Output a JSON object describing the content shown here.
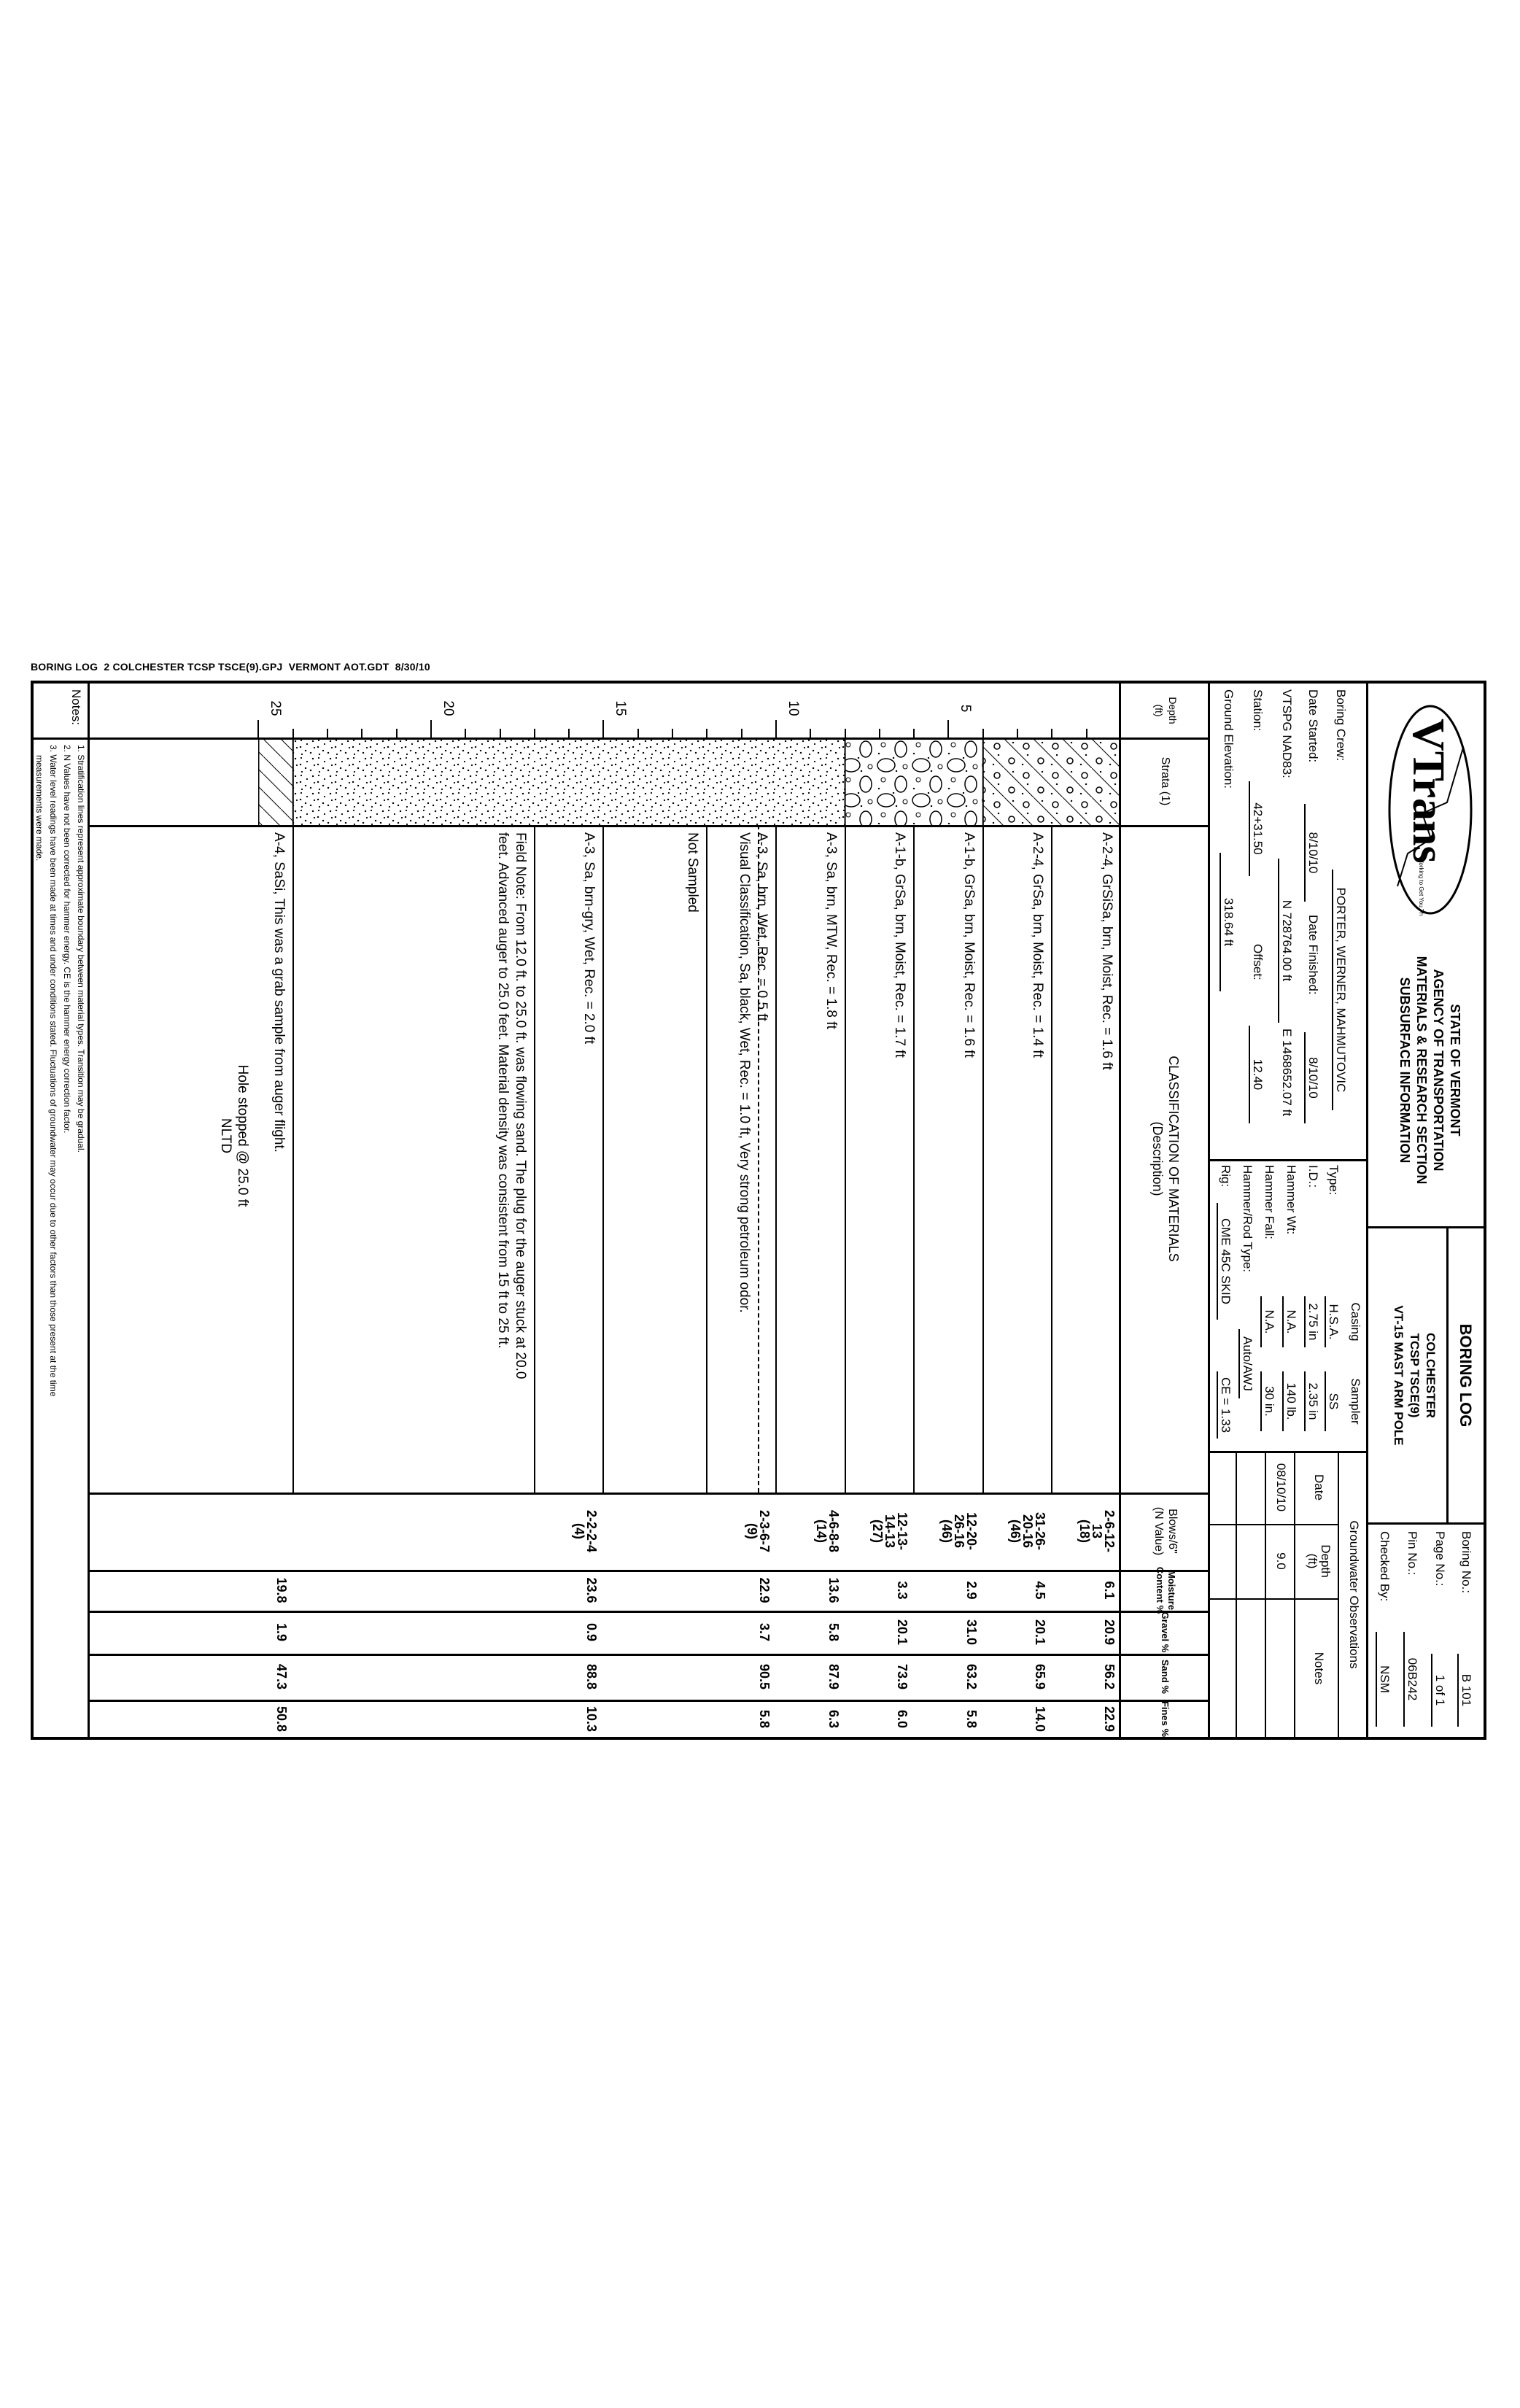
{
  "file_header": "BORING LOG  2 COLCHESTER TCSP TSCE(9).GPJ  VERMONT AOT.GDT  8/30/10",
  "logo": {
    "text": "VTrans",
    "tagline": "Working to Get You There"
  },
  "agency": [
    "STATE OF VERMONT",
    "AGENCY OF TRANSPORTATION",
    "MATERIALS & RESEARCH SECTION",
    "SUBSURFACE INFORMATION"
  ],
  "title": {
    "heading": "BORING LOG",
    "lines": [
      "COLCHESTER",
      "TCSP TSCE(9)",
      "VT-15 MAST ARM POLE"
    ]
  },
  "boring_info": {
    "boring_no_label": "Boring No.:",
    "boring_no": "B 101",
    "page_no_label": "Page No.:",
    "page_no": "1 of 1",
    "pin_no_label": "Pin No.:",
    "pin_no": "06B242",
    "checked_by_label": "Checked By:",
    "checked_by": "NSM"
  },
  "site_info": {
    "boring_crew_label": "Boring Crew:",
    "boring_crew": "PORTER, WERNER, MAHMUTOVIC",
    "date_started_label": "Date Started:",
    "date_started": "8/10/10",
    "date_finished_label": "Date Finished:",
    "date_finished": "8/10/10",
    "vtspg_label": "VTSPG NAD83:",
    "northing": "N 728764.00 ft",
    "easting": "E 1468652.07 ft",
    "station_label": "Station:",
    "station": "42+31.50",
    "offset_label": "Offset:",
    "offset": "12.40",
    "ground_elevation_label": "Ground Elevation:",
    "ground_elevation": "318.64 ft"
  },
  "equipment": {
    "casing_header": "Casing",
    "sampler_header": "Sampler",
    "type_label": "Type:",
    "type_casing": "H.S.A.",
    "type_sampler": "SS",
    "id_label": "I.D.:",
    "id_casing": "2.75 in",
    "id_sampler": "2.35 in",
    "hammer_wt_label": "Hammer Wt:",
    "hammer_wt_casing": "N.A.",
    "hammer_wt_sampler": "140 lb.",
    "hammer_fall_label": "Hammer Fall:",
    "hammer_fall_casing": "N.A.",
    "hammer_fall_sampler": "30 in.",
    "hammer_rod_label": "Hammer/Rod Type:",
    "hammer_rod": "Auto/AWJ",
    "rig_label": "Rig:",
    "rig": "CME 45C SKID",
    "ce": "CE = 1.33"
  },
  "groundwater": {
    "title": "Groundwater Observations",
    "columns": [
      "Date",
      "Depth\n(ft)",
      "Notes"
    ],
    "rows": [
      [
        "08/10/10",
        "9.0",
        ""
      ],
      [
        "",
        "",
        ""
      ],
      [
        "",
        "",
        ""
      ]
    ]
  },
  "columns": {
    "depth": "Depth\n(ft)",
    "strata": "Strata (1)",
    "classification": "CLASSIFICATION OF MATERIALS\n(Description)",
    "blows": "Blows/6\"\n(N Value)",
    "moisture": "Moisture\nContent %",
    "gravel": "Gravel %",
    "sand": "Sand %",
    "fines": "Fines %"
  },
  "depth_axis": {
    "min": 0,
    "max": 25,
    "tick_step": 1,
    "label_step": 5,
    "labels": [
      "5",
      "10",
      "15",
      "20",
      "25"
    ]
  },
  "strata": [
    {
      "from": 0,
      "to": 4,
      "pattern": "silty-gravelly-sand"
    },
    {
      "from": 4,
      "to": 8,
      "pattern": "gravel"
    },
    {
      "from": 8,
      "to": 24,
      "pattern": "sand"
    },
    {
      "from": 24,
      "to": 25,
      "pattern": "silt"
    }
  ],
  "samples": [
    {
      "from": 0,
      "to": 2,
      "description": [
        "A-2-4, GrSiSa, brn, Moist, Rec. = 1.6 ft"
      ],
      "blows": [
        "2-6-12-",
        "13",
        "(18)"
      ],
      "moisture": "6.1",
      "gravel": "20.9",
      "sand": "56.2",
      "fines": "22.9"
    },
    {
      "from": 2,
      "to": 4,
      "description": [
        "A-2-4, GrSa, brn, Moist, Rec. = 1.4 ft"
      ],
      "blows": [
        "31-26-",
        "20-16",
        "(46)"
      ],
      "moisture": "4.5",
      "gravel": "20.1",
      "sand": "65.9",
      "fines": "14.0"
    },
    {
      "from": 4,
      "to": 6,
      "description": [
        "A-1-b, GrSa, brn, Moist, Rec. = 1.6 ft"
      ],
      "blows": [
        "12-20-",
        "26-16",
        "(46)"
      ],
      "moisture": "2.9",
      "gravel": "31.0",
      "sand": "63.2",
      "fines": "5.8"
    },
    {
      "from": 6,
      "to": 8,
      "description": [
        "A-1-b, GrSa, brn, Moist, Rec. = 1.7 ft"
      ],
      "blows": [
        "12-13-",
        "14-13",
        "(27)"
      ],
      "moisture": "3.3",
      "gravel": "20.1",
      "sand": "73.9",
      "fines": "6.0"
    },
    {
      "from": 8,
      "to": 10,
      "description": [
        "A-3, Sa, brn, MTW, Rec. = 1.8 ft"
      ],
      "blows": [
        "4-6-8-8",
        "(14)"
      ],
      "moisture": "13.6",
      "gravel": "5.8",
      "sand": "87.9",
      "fines": "6.3"
    },
    {
      "from": 10,
      "to": 10.5,
      "description": [
        "A-3, Sa, brn, Wet, Rec. = 0.5 ft"
      ],
      "blows": [
        "2-3-6-7",
        "(9)"
      ],
      "moisture": "22.9",
      "gravel": "3.7",
      "sand": "90.5",
      "fines": "5.8",
      "boundary": "dashed"
    },
    {
      "from": 10.5,
      "to": 12,
      "description": [
        "Visual Classification, Sa, black, Wet, Rec. = 1.0 ft, Very strong petroleum odor."
      ]
    },
    {
      "from": 12,
      "to": 15,
      "description": [
        "Not Sampled"
      ]
    },
    {
      "from": 15,
      "to": 17,
      "description": [
        "A-3, Sa, brn-gry, Wet, Rec. = 2.0 ft"
      ],
      "blows": [
        "2-2-2-4",
        "(4)"
      ],
      "moisture": "23.6",
      "gravel": "0.9",
      "sand": "88.8",
      "fines": "10.3"
    },
    {
      "from": 17,
      "to": 24,
      "description": [
        "Field Note: From 12.0 ft. to 25.0 ft. was flowing sand. The plug for the auger stuck at 20.0",
        "feet. Advanced auger to 25.0 feet. Material density was consistent from 15 ft to 25 ft."
      ]
    },
    {
      "from": 24,
      "to": 25,
      "description": [
        "A-4, SaSi, This was a grab sample  from auger flight."
      ],
      "moisture": "19.8",
      "gravel": "1.9",
      "sand": "47.3",
      "fines": "50.8"
    }
  ],
  "end_of_hole": [
    "Hole stopped @ 25.0 ft",
    "NLTD"
  ],
  "notes": {
    "label": "Notes:",
    "lines": [
      "1. Stratification lines represent approximate boundary between material types. Transition may be gradual.",
      "2. N Values have not been corrected for hammer energy. CE is the hammer energy correction factor.",
      "3. Water level readings have been made at times and under conditions stated. Fluctuations of groundwater may occur due to other factors than those present at the time",
      "measurements were made."
    ]
  }
}
